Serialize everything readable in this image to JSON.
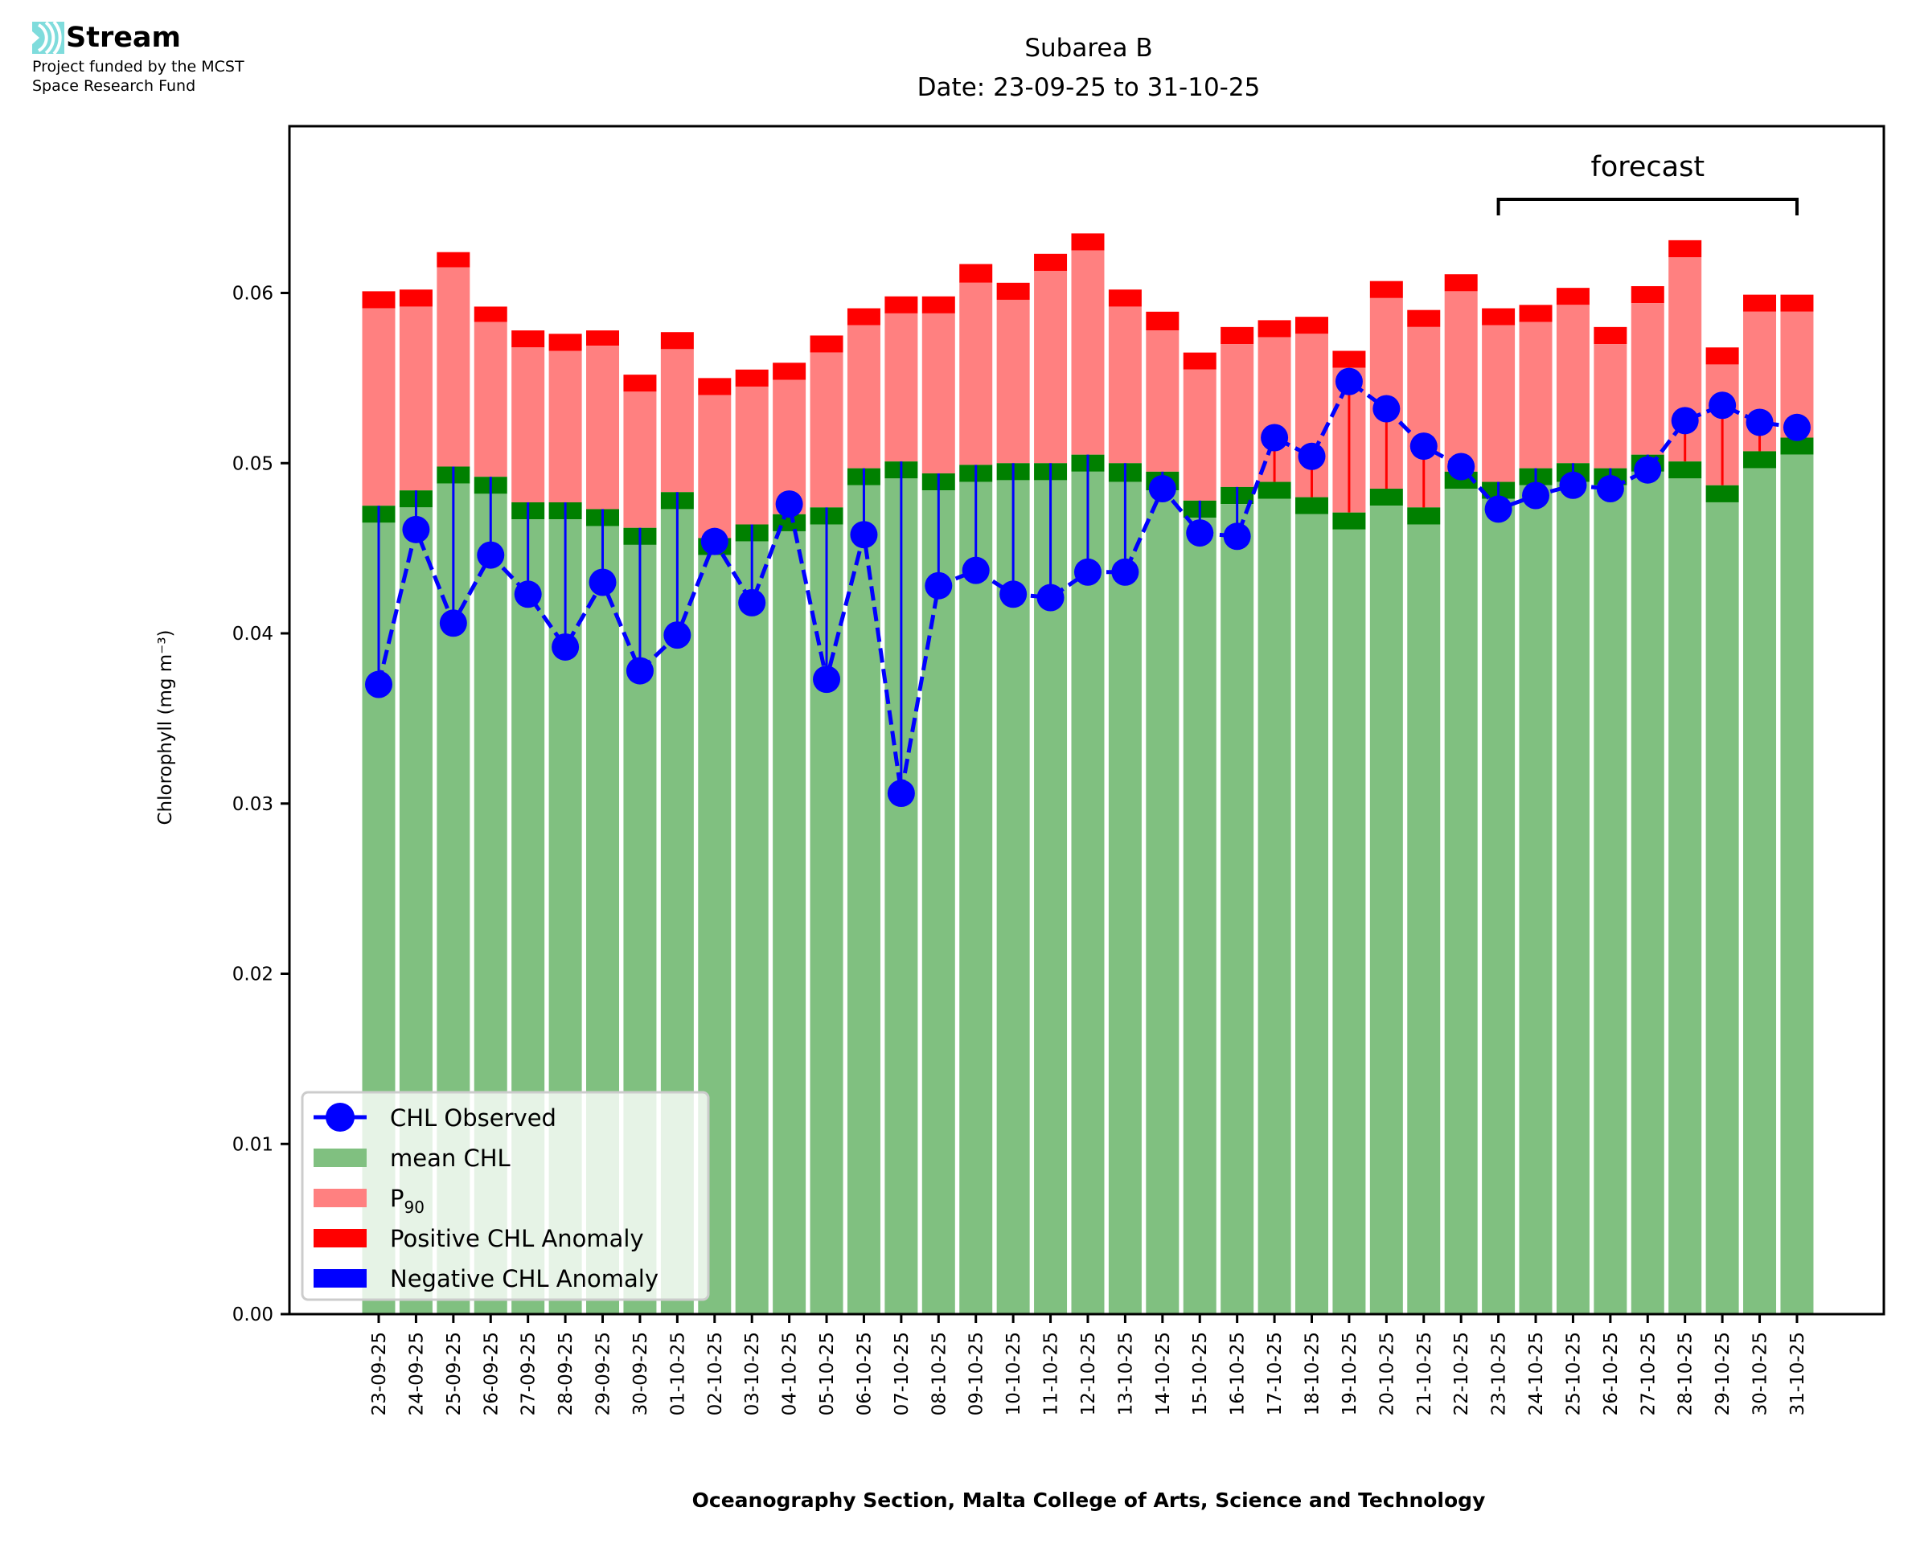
{
  "branding": {
    "logo_name": "Stream",
    "funding_line1": "Project funded by the MCST",
    "funding_line2": "Space Research Fund",
    "logo_color": "#7fdcdc"
  },
  "chart_data": {
    "type": "bar",
    "title": "Subarea B",
    "subtitle": "Date: 23-09-25 to 31-10-25",
    "xlabel": "Oceanography Section, Malta College of Arts, Science and Technology",
    "ylabel": "Chlorophyll (mg m⁻³)",
    "ylim": [
      0,
      0.0698
    ],
    "yticks": [
      0.0,
      0.01,
      0.02,
      0.03,
      0.04,
      0.05,
      0.06
    ],
    "ytick_labels": [
      "0.00",
      "0.01",
      "0.02",
      "0.03",
      "0.04",
      "0.05",
      "0.06"
    ],
    "grid": false,
    "legend_position": "bottom-left",
    "annotation": {
      "text": "forecast",
      "from": "23-10-25",
      "to": "31-10-25"
    },
    "colors": {
      "mean": "#80c080",
      "mean_band": "#008000",
      "p90": "#ff8080",
      "positive": "#ff0000",
      "negative": "#0000ff",
      "observed": "#0000ff"
    },
    "legend": [
      {
        "label": "CHL Observed",
        "kind": "line-marker",
        "color": "#0000ff"
      },
      {
        "label": "mean CHL",
        "kind": "patch",
        "color": "#80c080"
      },
      {
        "label": "P",
        "sub": "90",
        "kind": "patch",
        "color": "#ff8080"
      },
      {
        "label": "Positive CHL Anomaly",
        "kind": "patch",
        "color": "#ff0000"
      },
      {
        "label": "Negative CHL Anomaly",
        "kind": "patch",
        "color": "#0000ff"
      }
    ],
    "categories": [
      "23-09-25",
      "24-09-25",
      "25-09-25",
      "26-09-25",
      "27-09-25",
      "28-09-25",
      "29-09-25",
      "30-09-25",
      "01-10-25",
      "02-10-25",
      "03-10-25",
      "04-10-25",
      "05-10-25",
      "06-10-25",
      "07-10-25",
      "08-10-25",
      "09-10-25",
      "10-10-25",
      "11-10-25",
      "12-10-25",
      "13-10-25",
      "14-10-25",
      "15-10-25",
      "16-10-25",
      "17-10-25",
      "18-10-25",
      "19-10-25",
      "20-10-25",
      "21-10-25",
      "22-10-25",
      "23-10-25",
      "24-10-25",
      "25-10-25",
      "26-10-25",
      "27-10-25",
      "28-10-25",
      "29-10-25",
      "30-10-25",
      "31-10-25"
    ],
    "series": [
      {
        "name": "mean CHL",
        "values": [
          0.0465,
          0.0474,
          0.0488,
          0.0482,
          0.0467,
          0.0467,
          0.0463,
          0.0452,
          0.0473,
          0.0446,
          0.0454,
          0.046,
          0.0464,
          0.0487,
          0.0491,
          0.0484,
          0.0489,
          0.049,
          0.049,
          0.0495,
          0.0489,
          0.0484,
          0.0468,
          0.0476,
          0.0479,
          0.047,
          0.0461,
          0.0475,
          0.0464,
          0.0485,
          0.0479,
          0.0487,
          0.0489,
          0.0487,
          0.0495,
          0.0491,
          0.0477,
          0.0497,
          0.0505
        ]
      },
      {
        "name": "mean CHL band top",
        "values": [
          0.0475,
          0.0484,
          0.0498,
          0.0492,
          0.0477,
          0.0477,
          0.0473,
          0.0462,
          0.0483,
          0.0456,
          0.0464,
          0.047,
          0.0474,
          0.0497,
          0.0501,
          0.0494,
          0.0499,
          0.05,
          0.05,
          0.0505,
          0.05,
          0.0495,
          0.0478,
          0.0486,
          0.0489,
          0.048,
          0.0471,
          0.0485,
          0.0474,
          0.0495,
          0.0489,
          0.0497,
          0.05,
          0.0497,
          0.0505,
          0.0501,
          0.0487,
          0.0507,
          0.0515
        ]
      },
      {
        "name": "P90",
        "values": [
          0.0591,
          0.0592,
          0.0615,
          0.0583,
          0.0568,
          0.0566,
          0.0569,
          0.0542,
          0.0567,
          0.054,
          0.0545,
          0.0549,
          0.0565,
          0.0581,
          0.0588,
          0.0588,
          0.0606,
          0.0596,
          0.0613,
          0.0625,
          0.0592,
          0.0578,
          0.0555,
          0.057,
          0.0574,
          0.0576,
          0.0556,
          0.0597,
          0.058,
          0.0601,
          0.0581,
          0.0583,
          0.0593,
          0.057,
          0.0594,
          0.0621,
          0.0558,
          0.0589,
          0.0589
        ]
      },
      {
        "name": "P90 band top",
        "values": [
          0.0601,
          0.0602,
          0.0624,
          0.0592,
          0.0578,
          0.0576,
          0.0578,
          0.0552,
          0.0577,
          0.055,
          0.0555,
          0.0559,
          0.0575,
          0.0591,
          0.0598,
          0.0598,
          0.0617,
          0.0606,
          0.0623,
          0.0635,
          0.0602,
          0.0589,
          0.0565,
          0.058,
          0.0584,
          0.0586,
          0.0566,
          0.0607,
          0.059,
          0.0611,
          0.0591,
          0.0593,
          0.0603,
          0.058,
          0.0604,
          0.0631,
          0.0568,
          0.0599,
          0.0599
        ]
      },
      {
        "name": "CHL Observed",
        "values": [
          0.037,
          0.0461,
          0.0406,
          0.0446,
          0.0423,
          0.0392,
          0.043,
          0.0378,
          0.0399,
          0.0454,
          0.0418,
          0.0476,
          0.0373,
          0.0458,
          0.0306,
          0.0428,
          0.0437,
          0.0423,
          0.0421,
          0.0436,
          0.0436,
          0.0485,
          0.0459,
          0.0457,
          0.0515,
          0.0504,
          0.0548,
          0.0532,
          0.051,
          0.0498,
          0.0473,
          0.0481,
          0.0487,
          0.0485,
          0.0496,
          0.0525,
          0.0534,
          0.0524,
          0.0521
        ]
      }
    ]
  }
}
